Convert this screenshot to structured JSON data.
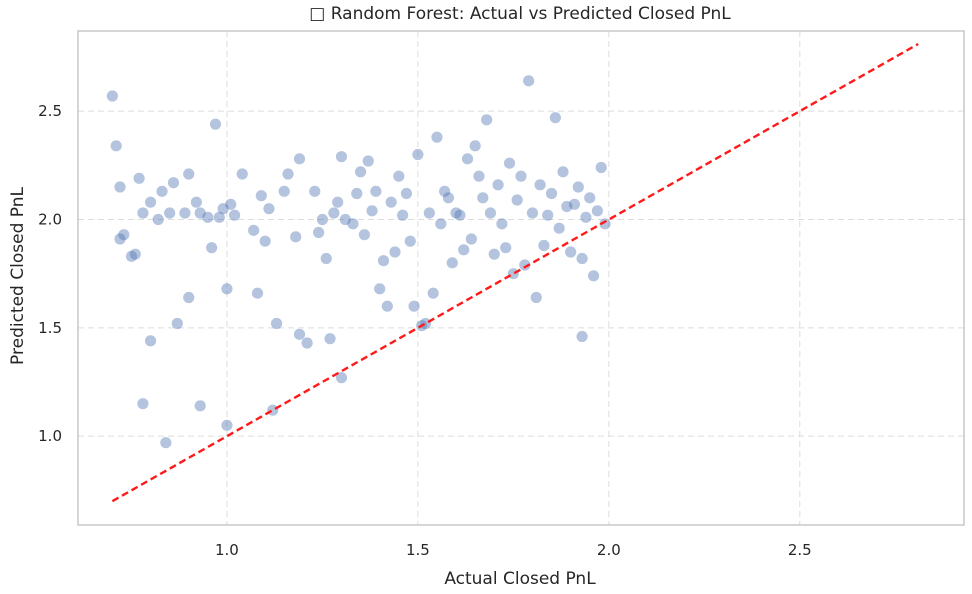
{
  "chart_data": {
    "type": "scatter",
    "title": "□ Random Forest: Actual vs Predicted Closed PnL",
    "xlabel": "Actual Closed PnL",
    "ylabel": "Predicted Closed PnL",
    "xlim": [
      0.61,
      2.93
    ],
    "ylim": [
      0.59,
      2.87
    ],
    "xticks": [
      1.0,
      1.5,
      2.0,
      2.5
    ],
    "yticks": [
      1.0,
      1.5,
      2.0,
      2.5
    ],
    "xtick_labels": [
      "1.0",
      "1.5",
      "2.0",
      "2.5"
    ],
    "ytick_labels": [
      "1.0",
      "1.5",
      "2.0",
      "2.5"
    ],
    "grid": true,
    "point_color": "#4c72b0",
    "line_color": "#ff1a1a",
    "reference_line": {
      "x": [
        0.7,
        2.81
      ],
      "y": [
        0.7,
        2.81
      ],
      "style": "dashed"
    },
    "series": [
      {
        "points": [
          [
            0.7,
            2.57
          ],
          [
            0.71,
            2.34
          ],
          [
            0.72,
            1.91
          ],
          [
            0.72,
            2.15
          ],
          [
            0.73,
            1.93
          ],
          [
            0.75,
            1.83
          ],
          [
            0.76,
            1.84
          ],
          [
            0.77,
            2.19
          ],
          [
            0.78,
            2.03
          ],
          [
            0.78,
            1.15
          ],
          [
            0.8,
            1.44
          ],
          [
            0.8,
            2.08
          ],
          [
            0.82,
            2.0
          ],
          [
            0.83,
            2.13
          ],
          [
            0.84,
            0.97
          ],
          [
            0.85,
            2.03
          ],
          [
            0.86,
            2.17
          ],
          [
            0.87,
            1.52
          ],
          [
            0.89,
            2.03
          ],
          [
            0.9,
            2.21
          ],
          [
            0.9,
            1.64
          ],
          [
            0.92,
            2.08
          ],
          [
            0.93,
            1.14
          ],
          [
            0.93,
            2.03
          ],
          [
            0.95,
            2.01
          ],
          [
            0.96,
            1.87
          ],
          [
            0.97,
            2.44
          ],
          [
            0.98,
            2.01
          ],
          [
            0.99,
            2.05
          ],
          [
            1.0,
            1.68
          ],
          [
            1.0,
            1.05
          ],
          [
            1.01,
            2.07
          ],
          [
            1.02,
            2.02
          ],
          [
            1.04,
            2.21
          ],
          [
            1.07,
            1.95
          ],
          [
            1.08,
            1.66
          ],
          [
            1.09,
            2.11
          ],
          [
            1.1,
            1.9
          ],
          [
            1.11,
            2.05
          ],
          [
            1.12,
            1.12
          ],
          [
            1.13,
            1.52
          ],
          [
            1.15,
            2.13
          ],
          [
            1.16,
            2.21
          ],
          [
            1.18,
            1.92
          ],
          [
            1.19,
            1.47
          ],
          [
            1.19,
            2.28
          ],
          [
            1.21,
            1.43
          ],
          [
            1.23,
            2.13
          ],
          [
            1.24,
            1.94
          ],
          [
            1.25,
            2.0
          ],
          [
            1.26,
            1.82
          ],
          [
            1.27,
            1.45
          ],
          [
            1.28,
            2.03
          ],
          [
            1.29,
            2.08
          ],
          [
            1.3,
            1.27
          ],
          [
            1.3,
            2.29
          ],
          [
            1.31,
            2.0
          ],
          [
            1.33,
            1.98
          ],
          [
            1.34,
            2.12
          ],
          [
            1.35,
            2.22
          ],
          [
            1.36,
            1.93
          ],
          [
            1.37,
            2.27
          ],
          [
            1.38,
            2.04
          ],
          [
            1.39,
            2.13
          ],
          [
            1.4,
            1.68
          ],
          [
            1.41,
            1.81
          ],
          [
            1.42,
            1.6
          ],
          [
            1.43,
            2.08
          ],
          [
            1.44,
            1.85
          ],
          [
            1.45,
            2.2
          ],
          [
            1.46,
            2.02
          ],
          [
            1.47,
            2.12
          ],
          [
            1.48,
            1.9
          ],
          [
            1.49,
            1.6
          ],
          [
            1.5,
            2.3
          ],
          [
            1.51,
            1.51
          ],
          [
            1.52,
            1.52
          ],
          [
            1.53,
            2.03
          ],
          [
            1.54,
            1.66
          ],
          [
            1.55,
            2.38
          ],
          [
            1.56,
            1.98
          ],
          [
            1.57,
            2.13
          ],
          [
            1.58,
            2.1
          ],
          [
            1.59,
            1.8
          ],
          [
            1.6,
            2.03
          ],
          [
            1.61,
            2.02
          ],
          [
            1.62,
            1.86
          ],
          [
            1.63,
            2.28
          ],
          [
            1.64,
            1.91
          ],
          [
            1.65,
            2.34
          ],
          [
            1.66,
            2.2
          ],
          [
            1.67,
            2.1
          ],
          [
            1.68,
            2.46
          ],
          [
            1.69,
            2.03
          ],
          [
            1.7,
            1.84
          ],
          [
            1.71,
            2.16
          ],
          [
            1.72,
            1.98
          ],
          [
            1.73,
            1.87
          ],
          [
            1.74,
            2.26
          ],
          [
            1.75,
            1.75
          ],
          [
            1.76,
            2.09
          ],
          [
            1.77,
            2.2
          ],
          [
            1.78,
            1.79
          ],
          [
            1.79,
            2.64
          ],
          [
            1.8,
            2.03
          ],
          [
            1.81,
            1.64
          ],
          [
            1.82,
            2.16
          ],
          [
            1.83,
            1.88
          ],
          [
            1.84,
            2.02
          ],
          [
            1.85,
            2.12
          ],
          [
            1.86,
            2.47
          ],
          [
            1.87,
            1.96
          ],
          [
            1.88,
            2.22
          ],
          [
            1.89,
            2.06
          ],
          [
            1.9,
            1.85
          ],
          [
            1.91,
            2.07
          ],
          [
            1.92,
            2.15
          ],
          [
            1.93,
            1.82
          ],
          [
            1.93,
            1.46
          ],
          [
            1.94,
            2.01
          ],
          [
            1.95,
            2.1
          ],
          [
            1.96,
            1.74
          ],
          [
            1.97,
            2.04
          ],
          [
            1.98,
            2.24
          ],
          [
            1.99,
            1.98
          ]
        ]
      }
    ]
  }
}
